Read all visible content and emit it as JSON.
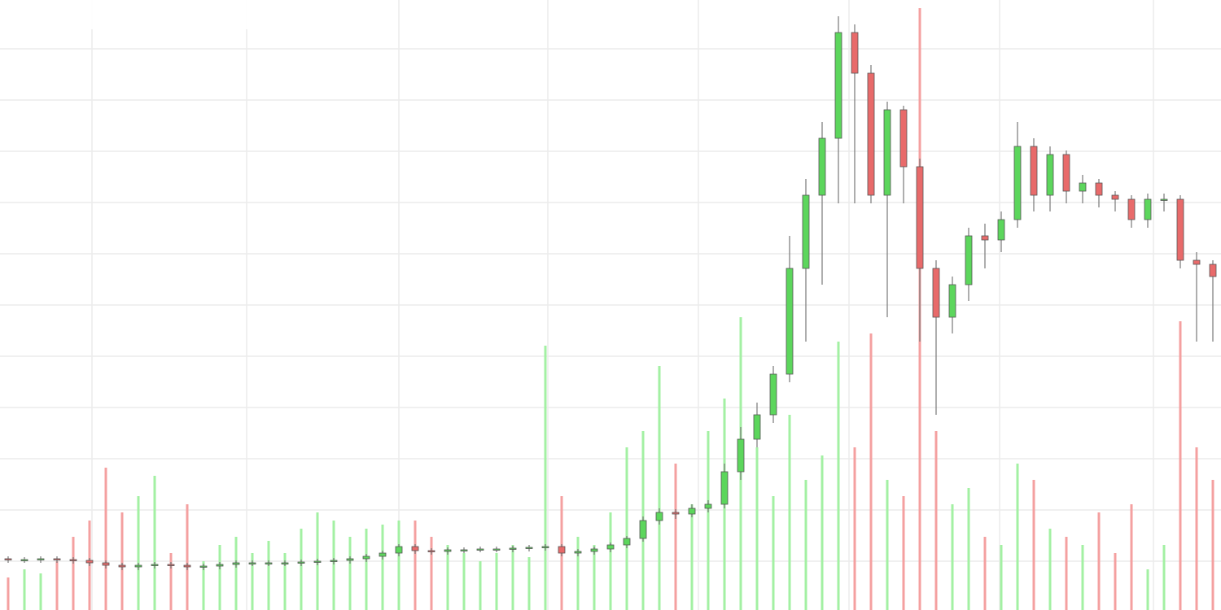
{
  "chart_data": {
    "type": "candlestick",
    "up_color": "#5cd65c",
    "down_color": "#e86a6a",
    "volume_up_color": "#a3f0a3",
    "volume_down_color": "#f4a0a0",
    "ylim": [
      0,
      750
    ],
    "volume_ylim": [
      0,
      750
    ],
    "open": [
      63,
      62,
      62,
      63,
      62,
      61,
      58,
      55,
      53,
      55,
      56,
      55,
      53,
      54,
      56,
      58,
      58,
      58,
      58,
      59,
      60,
      61,
      63,
      66,
      70,
      78,
      73,
      72,
      74,
      74,
      75,
      75,
      76,
      77,
      78,
      70,
      72,
      75,
      80,
      88,
      110,
      120,
      118,
      125,
      130,
      170,
      210,
      240,
      290,
      420,
      510,
      580,
      710,
      660,
      510,
      615,
      545,
      420,
      360,
      400,
      460,
      455,
      480,
      570,
      510,
      560,
      515,
      525,
      510,
      505,
      480,
      505,
      505,
      430,
      425
    ],
    "high": [
      66,
      65,
      66,
      66,
      65,
      64,
      61,
      58,
      58,
      59,
      59,
      58,
      57,
      59,
      61,
      61,
      61,
      61,
      62,
      63,
      64,
      66,
      69,
      73,
      81,
      81,
      76,
      77,
      77,
      78,
      78,
      79,
      80,
      81,
      81,
      75,
      78,
      83,
      91,
      115,
      125,
      124,
      130,
      135,
      180,
      225,
      255,
      300,
      460,
      530,
      600,
      730,
      720,
      670,
      625,
      620,
      555,
      430,
      410,
      470,
      475,
      490,
      600,
      580,
      570,
      565,
      535,
      530,
      515,
      510,
      512,
      512,
      510,
      440,
      430
    ],
    "low": [
      58,
      58,
      58,
      58,
      57,
      54,
      51,
      49,
      49,
      51,
      51,
      49,
      49,
      50,
      52,
      54,
      54,
      54,
      54,
      55,
      56,
      57,
      59,
      62,
      66,
      69,
      68,
      68,
      70,
      71,
      71,
      71,
      72,
      73,
      66,
      66,
      68,
      71,
      76,
      84,
      105,
      112,
      114,
      120,
      125,
      160,
      200,
      230,
      280,
      330,
      400,
      500,
      500,
      500,
      360,
      500,
      330,
      240,
      340,
      380,
      420,
      440,
      470,
      490,
      490,
      500,
      500,
      495,
      490,
      470,
      470,
      490,
      420,
      330,
      330
    ],
    "close": [
      62,
      62,
      63,
      62,
      61,
      58,
      55,
      53,
      55,
      56,
      55,
      53,
      54,
      56,
      58,
      58,
      58,
      58,
      59,
      60,
      61,
      63,
      66,
      70,
      78,
      73,
      72,
      74,
      74,
      75,
      75,
      76,
      77,
      78,
      70,
      72,
      75,
      80,
      88,
      110,
      120,
      118,
      125,
      130,
      170,
      210,
      240,
      290,
      420,
      510,
      580,
      710,
      660,
      510,
      615,
      545,
      420,
      360,
      400,
      460,
      455,
      480,
      570,
      510,
      560,
      515,
      525,
      510,
      505,
      480,
      505,
      505,
      430,
      425,
      410
    ],
    "volume": [
      40,
      50,
      45,
      60,
      90,
      110,
      175,
      120,
      140,
      165,
      70,
      130,
      60,
      80,
      90,
      70,
      85,
      70,
      100,
      120,
      110,
      90,
      100,
      105,
      110,
      110,
      90,
      80,
      70,
      60,
      70,
      80,
      65,
      325,
      140,
      90,
      80,
      120,
      200,
      220,
      300,
      180,
      130,
      220,
      260,
      360,
      200,
      140,
      240,
      160,
      190,
      330,
      200,
      340,
      160,
      140,
      740,
      220,
      130,
      150,
      90,
      80,
      180,
      160,
      100,
      90,
      80,
      120,
      70,
      130,
      50,
      80,
      355,
      200,
      160
    ]
  }
}
